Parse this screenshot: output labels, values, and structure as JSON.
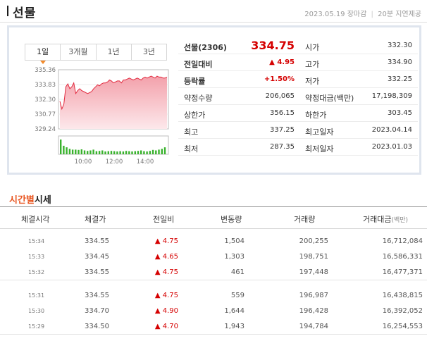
{
  "header": {
    "title": "선물",
    "date": "2023.05.19",
    "status": "장마감",
    "delay": "20분 지연제공"
  },
  "chart_tabs": [
    "1일",
    "3개월",
    "1년",
    "3년"
  ],
  "mini_chart": {
    "y_ticks": [
      "335.36",
      "333.83",
      "332.30",
      "330.77",
      "329.24"
    ],
    "x_ticks": [
      "10:00",
      "12:00",
      "14:00"
    ],
    "colors": {
      "line": "#e2293e",
      "fill_top": "#f3a1ab",
      "fill_bottom": "#fde8eb",
      "volume": "#38b22c"
    }
  },
  "chart_data": {
    "type": "area",
    "ylim": [
      329.24,
      335.36
    ],
    "x_ticks": [
      "10:00",
      "12:00",
      "14:00"
    ],
    "series": [
      {
        "values": [
          332.1,
          331.3,
          331.8,
          333.6,
          333.9,
          333.4,
          333.6,
          334.0,
          332.9,
          333.2,
          333.4,
          333.2,
          333.1,
          333.0,
          332.9,
          333.0,
          333.1,
          333.4,
          333.6,
          333.8,
          333.7,
          333.9,
          334.0,
          334.0,
          334.1,
          334.3,
          334.2,
          334.0,
          334.1,
          334.2,
          334.2,
          334.0,
          334.3,
          334.3,
          334.4,
          334.5,
          334.4,
          334.3,
          334.4,
          334.5,
          334.4,
          334.3,
          334.5,
          334.6,
          334.5,
          334.6,
          334.7,
          334.6,
          334.5,
          334.7,
          334.6,
          334.6,
          334.5,
          334.5,
          334.6
        ]
      }
    ],
    "volume": [
      0.95,
      0.55,
      0.45,
      0.35,
      0.3,
      0.3,
      0.28,
      0.32,
      0.25,
      0.22,
      0.25,
      0.3,
      0.2,
      0.22,
      0.25,
      0.18,
      0.2,
      0.22,
      0.2,
      0.18,
      0.2,
      0.18,
      0.22,
      0.2,
      0.18,
      0.2,
      0.22,
      0.25,
      0.2,
      0.18,
      0.22,
      0.28,
      0.25,
      0.3,
      0.35,
      0.45
    ]
  },
  "quote": {
    "rows": [
      {
        "l1": "선물(2306)",
        "v1": "334.75",
        "l2": "시가",
        "v2": "332.30"
      },
      {
        "l1": "전일대비",
        "v1": "▲ 4.95",
        "l2": "고가",
        "v2": "334.90"
      },
      {
        "l1": "등락률",
        "v1": "+1.50%",
        "l2": "저가",
        "v2": "332.25"
      },
      {
        "l1": "약정수량",
        "v1": "206,065",
        "l2": "약정대금(백만)",
        "v2": "17,198,309"
      },
      {
        "l1": "상한가",
        "v1": "356.15",
        "l2": "하한가",
        "v2": "303.45"
      },
      {
        "l1": "최고",
        "v1": "337.25",
        "l2": "최고일자",
        "v2": "2023.04.14"
      },
      {
        "l1": "최저",
        "v1": "287.35",
        "l2": "최저일자",
        "v2": "2023.01.03"
      }
    ]
  },
  "section": {
    "title_highlight": "시간별",
    "title_rest": "시세"
  },
  "table": {
    "headers": [
      "체결시각",
      "체결가",
      "전일비",
      "변동량",
      "거래량",
      "거래대금"
    ],
    "header_unit": "(백만)",
    "rows": [
      [
        "15:34",
        "334.55",
        "▲ 4.75",
        "1,504",
        "200,255",
        "16,712,084"
      ],
      [
        "15:33",
        "334.45",
        "▲ 4.65",
        "1,303",
        "198,751",
        "16,586,331"
      ],
      [
        "15:32",
        "334.55",
        "▲ 4.75",
        "461",
        "197,448",
        "16,477,371"
      ],
      [
        "15:31",
        "334.55",
        "▲ 4.75",
        "559",
        "196,987",
        "16,438,815"
      ],
      [
        "15:30",
        "334.70",
        "▲ 4.90",
        "1,644",
        "196,428",
        "16,392,052"
      ],
      [
        "15:29",
        "334.50",
        "▲ 4.70",
        "1,943",
        "194,784",
        "16,254,553"
      ]
    ]
  }
}
